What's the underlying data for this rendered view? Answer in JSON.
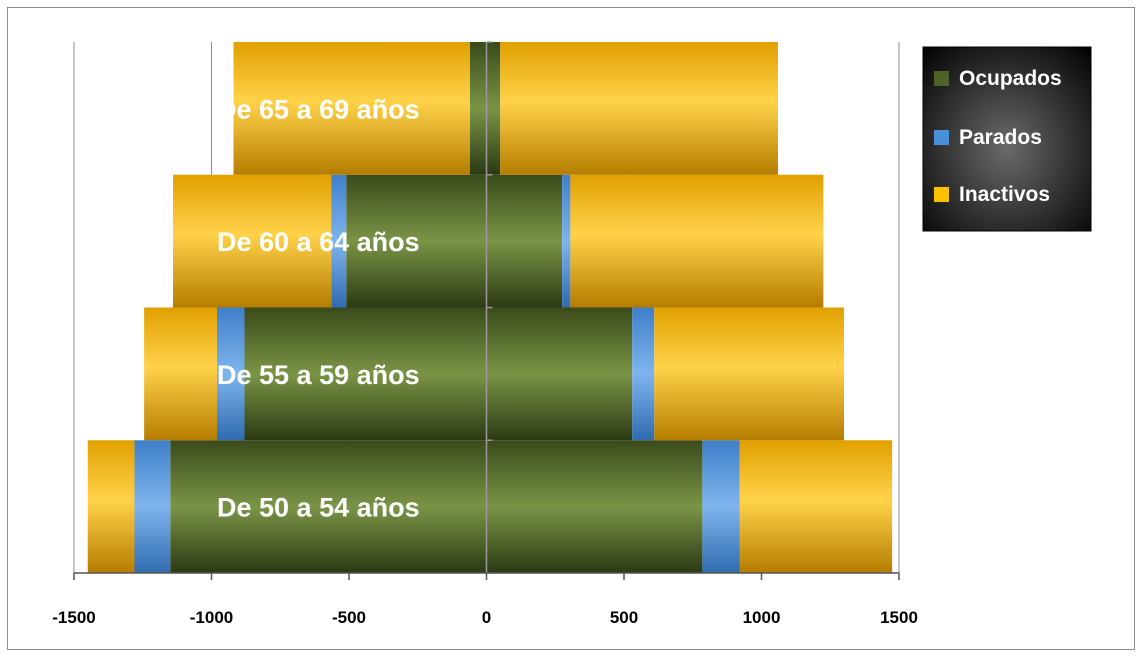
{
  "chart_data": {
    "type": "bar",
    "orientation": "horizontal",
    "stacked": true,
    "title": "",
    "xlabel": "",
    "ylabel": "",
    "xlim": [
      -1500,
      1500
    ],
    "x_ticks": [
      "-1500",
      "-1000",
      "-500",
      "0",
      "500",
      "1000",
      "1500"
    ],
    "grid": "vertical",
    "legend_position": "top-right",
    "categories": [
      "De 50 a 54 años",
      "De 55 a 59 años",
      "De 60 a 64 años",
      "De 65 a 69 años"
    ],
    "series": [
      {
        "name": "Ocupados",
        "color": "#4f6228",
        "left_values": [
          -1150,
          -880,
          -510,
          -60
        ],
        "right_values": [
          785,
          530,
          275,
          50
        ]
      },
      {
        "name": "Parados",
        "color": "#4a90d9",
        "left_values": [
          -130,
          -100,
          -55,
          0
        ],
        "right_values": [
          135,
          80,
          30,
          0
        ]
      },
      {
        "name": "Inactivos",
        "color": "#f5b800",
        "left_values": [
          -170,
          -265,
          -575,
          -860
        ],
        "right_values": [
          555,
          690,
          920,
          1010
        ]
      }
    ]
  }
}
